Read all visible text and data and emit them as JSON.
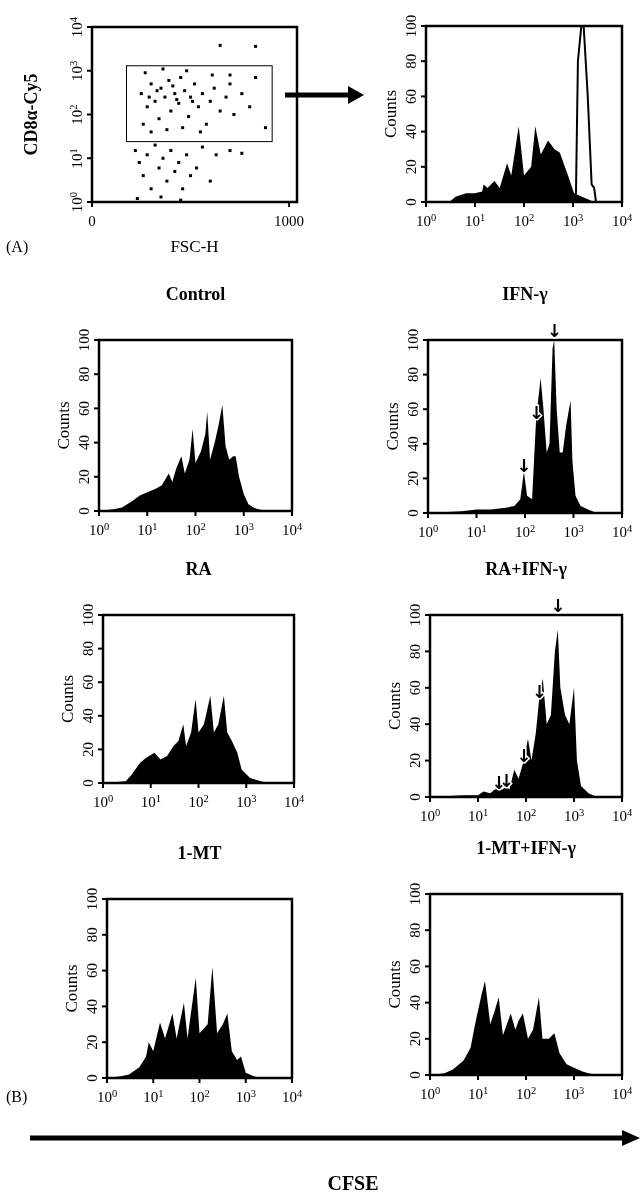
{
  "chart_data": [
    {
      "type": "scatter",
      "xlabel": "FSC-H",
      "ylabel": "CD8α-Cy5",
      "log": "y",
      "marker": "square",
      "color": "#000000",
      "xlim": [
        0,
        1040
      ],
      "xticks": [
        0,
        1000
      ],
      "ylim": [
        1,
        10000
      ],
      "yticks": [
        {
          "value": 1,
          "label": "10$^{0}$"
        },
        {
          "value": 10,
          "label": "10$^{1}$"
        },
        {
          "value": 100,
          "label": "10$^{2}$"
        },
        {
          "value": 1000,
          "label": "10$^{3}$"
        },
        {
          "value": 10000,
          "label": "10$^{4}$"
        }
      ],
      "annotations": [
        "(A)"
      ],
      "x": [
        250,
        280,
        300,
        320,
        340,
        350,
        370,
        390,
        400,
        420,
        440,
        450,
        470,
        490,
        500,
        520,
        540,
        560,
        580,
        600,
        620,
        650,
        680,
        700,
        720,
        760,
        800,
        830,
        260,
        300,
        380,
        460,
        550,
        270,
        360,
        480,
        610,
        700,
        220,
        240,
        260,
        280,
        300,
        320,
        340,
        360,
        380,
        400,
        420,
        440,
        460,
        480,
        500,
        530,
        560,
        600,
        630,
        230,
        350,
        450,
        700,
        760,
        650,
        830,
        880,
        330,
        410,
        510,
        290,
        430
      ],
      "values": [
        300,
        150,
        500,
        200,
        80,
        400,
        250,
        600,
        120,
        300,
        180,
        700,
        350,
        90,
        250,
        500,
        150,
        300,
        60,
        200,
        400,
        120,
        250,
        500,
        100,
        300,
        150,
        700,
        60,
        40,
        45,
        50,
        40,
        900,
        1100,
        1000,
        800,
        800,
        15,
        8,
        4,
        12,
        2,
        20,
        6,
        10,
        3,
        15,
        5,
        8,
        2,
        12,
        4,
        6,
        18,
        3,
        12,
        1.2,
        1.3,
        1.1,
        15,
        13,
        3800,
        3600,
        50,
        350,
        450,
        200,
        250,
        220
      ]
    },
    {
      "type": "area",
      "ylabel": "Counts",
      "log": "x",
      "xlim": [
        1,
        10000
      ],
      "ylim": [
        0,
        100
      ],
      "xticks": [
        {
          "value": 1,
          "label": "10$^{0}$"
        },
        {
          "value": 10,
          "label": "10$^{1}$"
        },
        {
          "value": 100,
          "label": "10$^{2}$"
        },
        {
          "value": 1000,
          "label": "10$^{3}$"
        },
        {
          "value": 10000,
          "label": "10$^{4}$"
        }
      ],
      "yticks": [
        0,
        20,
        40,
        60,
        80,
        100
      ],
      "series": [
        {
          "type": "area",
          "color": "#000000",
          "x": [
            1,
            3,
            4,
            6.6,
            10,
            14,
            15,
            18,
            25,
            32,
            45,
            55,
            78,
            100,
            140,
            170,
            220,
            310,
            420,
            540,
            790,
            1050,
            1850,
            2700,
            10000
          ],
          "values": [
            0,
            0,
            3,
            5,
            5,
            6,
            10,
            8,
            12,
            8,
            22,
            15,
            43,
            15,
            20,
            43,
            27,
            35,
            30,
            28,
            15,
            5,
            2,
            0,
            0
          ]
        },
        {
          "type": "line",
          "color": "#000000",
          "x": [
            1,
            1000,
            1050,
            1150,
            1260,
            1480,
            1650,
            2000,
            2400,
            2700,
            2950,
            10000
          ],
          "values": [
            0,
            0,
            2,
            5,
            80,
            100,
            100,
            60,
            10,
            8,
            0,
            0
          ]
        }
      ]
    },
    {
      "type": "area",
      "title": "Control",
      "ylabel": "Counts",
      "log": "x",
      "xlim": [
        1,
        10000
      ],
      "ylim": [
        0,
        100
      ],
      "xticks": [
        {
          "value": 1,
          "label": "10$^{0}$"
        },
        {
          "value": 10,
          "label": "10$^{1}$"
        },
        {
          "value": 100,
          "label": "10$^{2}$"
        },
        {
          "value": 1000,
          "label": "10$^{3}$"
        },
        {
          "value": 10000,
          "label": "10$^{4}$"
        }
      ],
      "yticks": [
        0,
        20,
        40,
        60,
        80,
        100
      ],
      "color": "#000000",
      "x": [
        1,
        2,
        3,
        5,
        7,
        10,
        15,
        20,
        28,
        33,
        40,
        51,
        60,
        75,
        87,
        100,
        130,
        160,
        175,
        200,
        250,
        300,
        360,
        420,
        500,
        600,
        680,
        800,
        1000,
        1250,
        1600,
        2000,
        3000,
        10000
      ],
      "values": [
        0,
        1,
        2,
        6,
        9,
        11,
        13,
        15,
        22,
        17,
        25,
        32,
        22,
        30,
        48,
        28,
        35,
        45,
        58,
        30,
        40,
        50,
        62,
        38,
        30,
        32,
        32,
        20,
        10,
        4,
        2,
        1,
        0,
        0
      ]
    },
    {
      "type": "area",
      "title": "IFN-γ",
      "ylabel": "Counts",
      "log": "x",
      "xlim": [
        1,
        10000
      ],
      "ylim": [
        0,
        100
      ],
      "xticks": [
        {
          "value": 1,
          "label": "10$^{0}$"
        },
        {
          "value": 10,
          "label": "10$^{1}$"
        },
        {
          "value": 100,
          "label": "10$^{2}$"
        },
        {
          "value": 1000,
          "label": "10$^{3}$"
        },
        {
          "value": 10000,
          "label": "10$^{4}$"
        }
      ],
      "yticks": [
        0,
        20,
        40,
        60,
        80,
        100
      ],
      "color": "#000000",
      "x": [
        1,
        5,
        10,
        20,
        40,
        60,
        80,
        95,
        110,
        140,
        170,
        210,
        240,
        280,
        320,
        370,
        400,
        450,
        520,
        600,
        700,
        870,
        950,
        1100,
        1400,
        2000,
        3000,
        10000
      ],
      "values": [
        0,
        1,
        2,
        2,
        3,
        4,
        8,
        24,
        10,
        8,
        55,
        78,
        60,
        35,
        40,
        95,
        100,
        60,
        35,
        35,
        50,
        65,
        30,
        10,
        4,
        2,
        0,
        0
      ],
      "annotations": [
        {
          "text": "↓",
          "x": 95,
          "y": 24
        },
        {
          "text": "↓",
          "x": 170,
          "y": 55
        },
        {
          "text": "↓",
          "x": 400,
          "y": 100
        }
      ]
    },
    {
      "type": "area",
      "title": "RA",
      "ylabel": "Counts",
      "log": "x",
      "xlim": [
        1,
        10000
      ],
      "ylim": [
        0,
        100
      ],
      "xticks": [
        {
          "value": 1,
          "label": "10$^{0}$"
        },
        {
          "value": 10,
          "label": "10$^{1}$"
        },
        {
          "value": 100,
          "label": "10$^{2}$"
        },
        {
          "value": 1000,
          "label": "10$^{3}$"
        },
        {
          "value": 10000,
          "label": "10$^{4}$"
        }
      ],
      "yticks": [
        0,
        20,
        40,
        60,
        80,
        100
      ],
      "color": "#000000",
      "x": [
        1,
        3,
        4,
        6,
        8,
        12,
        16,
        22,
        30,
        38,
        48,
        55,
        70,
        87,
        100,
        130,
        177,
        210,
        260,
        340,
        400,
        500,
        650,
        800,
        1200,
        2000,
        3000,
        10000
      ],
      "values": [
        0,
        1,
        5,
        12,
        15,
        18,
        14,
        16,
        22,
        25,
        35,
        22,
        30,
        50,
        30,
        35,
        52,
        30,
        35,
        52,
        30,
        25,
        18,
        8,
        3,
        1,
        0,
        0
      ]
    },
    {
      "type": "area",
      "title": "RA+IFN-γ",
      "ylabel": "Counts",
      "log": "x",
      "xlim": [
        1,
        10000
      ],
      "ylim": [
        0,
        100
      ],
      "xticks": [
        {
          "value": 1,
          "label": "10$^{0}$"
        },
        {
          "value": 10,
          "label": "10$^{1}$"
        },
        {
          "value": 100,
          "label": "10$^{2}$"
        },
        {
          "value": 1000,
          "label": "10$^{3}$"
        },
        {
          "value": 10000,
          "label": "10$^{4}$"
        }
      ],
      "yticks": [
        0,
        20,
        40,
        60,
        80,
        100
      ],
      "color": "#000000",
      "x": [
        1,
        5,
        10,
        13,
        18,
        22,
        27,
        32,
        39,
        45,
        57,
        70,
        90,
        110,
        130,
        160,
        190,
        224,
        270,
        330,
        400,
        460,
        520,
        650,
        800,
        1000,
        1150,
        1400,
        2000,
        3000,
        10000
      ],
      "values": [
        0,
        1,
        1,
        3,
        2,
        4,
        5,
        4,
        6,
        4,
        15,
        10,
        20,
        32,
        20,
        35,
        55,
        65,
        40,
        45,
        80,
        92,
        60,
        45,
        40,
        60,
        20,
        6,
        2,
        0,
        0
      ],
      "annotations": [
        {
          "text": "↓",
          "x": 27,
          "y": 5
        },
        {
          "text": "↓",
          "x": 39,
          "y": 6
        },
        {
          "text": "↓",
          "x": 90,
          "y": 20
        },
        {
          "text": "↓",
          "x": 190,
          "y": 55
        },
        {
          "text": "↓",
          "x": 460,
          "y": 92
        }
      ]
    },
    {
      "type": "area",
      "title": "1-MT",
      "ylabel": "Counts",
      "log": "x",
      "xlim": [
        1,
        10000
      ],
      "ylim": [
        0,
        100
      ],
      "xticks": [
        {
          "value": 1,
          "label": "10$^{0}$"
        },
        {
          "value": 10,
          "label": "10$^{1}$"
        },
        {
          "value": 100,
          "label": "10$^{2}$"
        },
        {
          "value": 1000,
          "label": "10$^{3}$"
        },
        {
          "value": 10000,
          "label": "10$^{4}$"
        }
      ],
      "yticks": [
        0,
        20,
        40,
        60,
        80,
        100
      ],
      "color": "#000000",
      "annotations": [
        "(B)"
      ],
      "x": [
        1,
        2,
        3,
        5,
        7,
        8,
        10,
        14,
        18,
        26,
        32,
        46,
        55,
        83,
        100,
        150,
        190,
        240,
        320,
        400,
        500,
        650,
        790,
        1000,
        1500,
        2000,
        10000
      ],
      "values": [
        0,
        1,
        2,
        6,
        12,
        20,
        15,
        31,
        22,
        36,
        22,
        42,
        22,
        56,
        25,
        30,
        62,
        25,
        30,
        36,
        15,
        10,
        12,
        3,
        1,
        0,
        0
      ]
    },
    {
      "type": "area",
      "title": "1-MT+IFN-γ",
      "ylabel": "Counts",
      "log": "x",
      "xlim": [
        1,
        10000
      ],
      "ylim": [
        0,
        100
      ],
      "xticks": [
        {
          "value": 1,
          "label": "10$^{0}$"
        },
        {
          "value": 10,
          "label": "10$^{1}$"
        },
        {
          "value": 100,
          "label": "10$^{2}$"
        },
        {
          "value": 1000,
          "label": "10$^{3}$"
        },
        {
          "value": 10000,
          "label": "10$^{4}$"
        }
      ],
      "yticks": [
        0,
        20,
        40,
        60,
        80,
        100
      ],
      "color": "#000000",
      "x": [
        1,
        2,
        3,
        5,
        7,
        9,
        12,
        14,
        18,
        22,
        27,
        33,
        40,
        48,
        60,
        70,
        86,
        110,
        140,
        186,
        220,
        300,
        390,
        500,
        700,
        1000,
        1500,
        2000,
        3000,
        10000
      ],
      "values": [
        0,
        1,
        3,
        8,
        15,
        30,
        45,
        52,
        28,
        35,
        43,
        22,
        28,
        34,
        25,
        30,
        34,
        20,
        25,
        43,
        20,
        20,
        23,
        12,
        6,
        4,
        2,
        1,
        0,
        0
      ]
    },
    {
      "type": "other",
      "xlabel": "CFSE"
    }
  ]
}
